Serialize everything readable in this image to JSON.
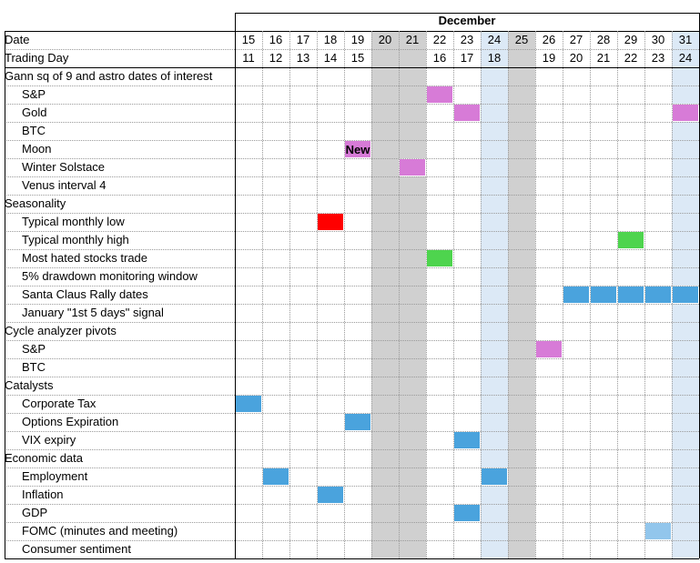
{
  "month_label": "December",
  "row_labels": [
    {
      "text": "Date",
      "sub": false
    },
    {
      "text": "Trading Day",
      "sub": false
    },
    {
      "text": "Gann sq of 9 and astro dates of interest",
      "sub": false
    },
    {
      "text": "S&P",
      "sub": true
    },
    {
      "text": "Gold",
      "sub": true
    },
    {
      "text": "BTC",
      "sub": true
    },
    {
      "text": "Moon",
      "sub": true
    },
    {
      "text": "Winter Solstace",
      "sub": true
    },
    {
      "text": "Venus interval 4",
      "sub": true
    },
    {
      "text": "Seasonality",
      "sub": false
    },
    {
      "text": "Typical monthly low",
      "sub": true
    },
    {
      "text": "Typical monthly high",
      "sub": true
    },
    {
      "text": "Most hated stocks trade",
      "sub": true
    },
    {
      "text": "5% drawdown monitoring window",
      "sub": true
    },
    {
      "text": "Santa Claus Rally dates",
      "sub": true
    },
    {
      "text": "January \"1st 5 days\" signal",
      "sub": true
    },
    {
      "text": "Cycle analyzer pivots",
      "sub": false
    },
    {
      "text": "S&P",
      "sub": true
    },
    {
      "text": "BTC",
      "sub": true
    },
    {
      "text": "Catalysts",
      "sub": false
    },
    {
      "text": "Corporate Tax",
      "sub": true
    },
    {
      "text": "Options Expiration",
      "sub": true
    },
    {
      "text": "VIX expiry",
      "sub": true
    },
    {
      "text": "Economic data",
      "sub": false
    },
    {
      "text": "Employment",
      "sub": true
    },
    {
      "text": "Inflation",
      "sub": true
    },
    {
      "text": "GDP",
      "sub": true
    },
    {
      "text": "FOMC (minutes and meeting)",
      "sub": true
    },
    {
      "text": "Consumer sentiment",
      "sub": true
    }
  ],
  "dates": [
    "15",
    "16",
    "17",
    "18",
    "19",
    "20",
    "21",
    "22",
    "23",
    "24",
    "25",
    "26",
    "27",
    "28",
    "29",
    "30",
    "31"
  ],
  "trading_days": [
    "11",
    "12",
    "13",
    "14",
    "15",
    "",
    "",
    "16",
    "17",
    "18",
    "",
    "19",
    "20",
    "21",
    "22",
    "23",
    "24"
  ],
  "column_shading": {
    "weekend_holiday_gray": [
      "20",
      "21",
      "25"
    ],
    "light_blue": [
      "24",
      "31"
    ]
  },
  "colors": {
    "gray": "#d0d0d0",
    "light_blue": "#dce9f6",
    "magenta": "#d77bd7",
    "red": "#ff0000",
    "green": "#4ed44e",
    "blue": "#4aa3dd",
    "pale_blue": "#92c6ec"
  },
  "marks": [
    {
      "row": 3,
      "date": "22",
      "color": "magenta",
      "text": ""
    },
    {
      "row": 4,
      "date": "23",
      "color": "magenta",
      "text": ""
    },
    {
      "row": 4,
      "date": "31",
      "color": "magenta",
      "text": ""
    },
    {
      "row": 6,
      "date": "19",
      "color": "magenta",
      "text": "New"
    },
    {
      "row": 7,
      "date": "21",
      "color": "magenta",
      "text": ""
    },
    {
      "row": 10,
      "date": "18",
      "color": "red",
      "text": ""
    },
    {
      "row": 11,
      "date": "29",
      "color": "green",
      "text": ""
    },
    {
      "row": 12,
      "date": "22",
      "color": "green",
      "text": ""
    },
    {
      "row": 14,
      "date": "27",
      "color": "blue",
      "text": ""
    },
    {
      "row": 14,
      "date": "28",
      "color": "blue",
      "text": ""
    },
    {
      "row": 14,
      "date": "29",
      "color": "blue",
      "text": ""
    },
    {
      "row": 14,
      "date": "30",
      "color": "blue",
      "text": ""
    },
    {
      "row": 14,
      "date": "31",
      "color": "blue",
      "text": ""
    },
    {
      "row": 17,
      "date": "26",
      "color": "magenta",
      "text": ""
    },
    {
      "row": 20,
      "date": "15",
      "color": "blue",
      "text": ""
    },
    {
      "row": 21,
      "date": "19",
      "color": "blue",
      "text": ""
    },
    {
      "row": 22,
      "date": "23",
      "color": "blue",
      "text": ""
    },
    {
      "row": 24,
      "date": "16",
      "color": "blue",
      "text": ""
    },
    {
      "row": 24,
      "date": "24",
      "color": "blue",
      "text": ""
    },
    {
      "row": 25,
      "date": "18",
      "color": "blue",
      "text": ""
    },
    {
      "row": 26,
      "date": "23",
      "color": "blue",
      "text": ""
    },
    {
      "row": 27,
      "date": "30",
      "color": "pale_blue",
      "text": ""
    }
  ]
}
